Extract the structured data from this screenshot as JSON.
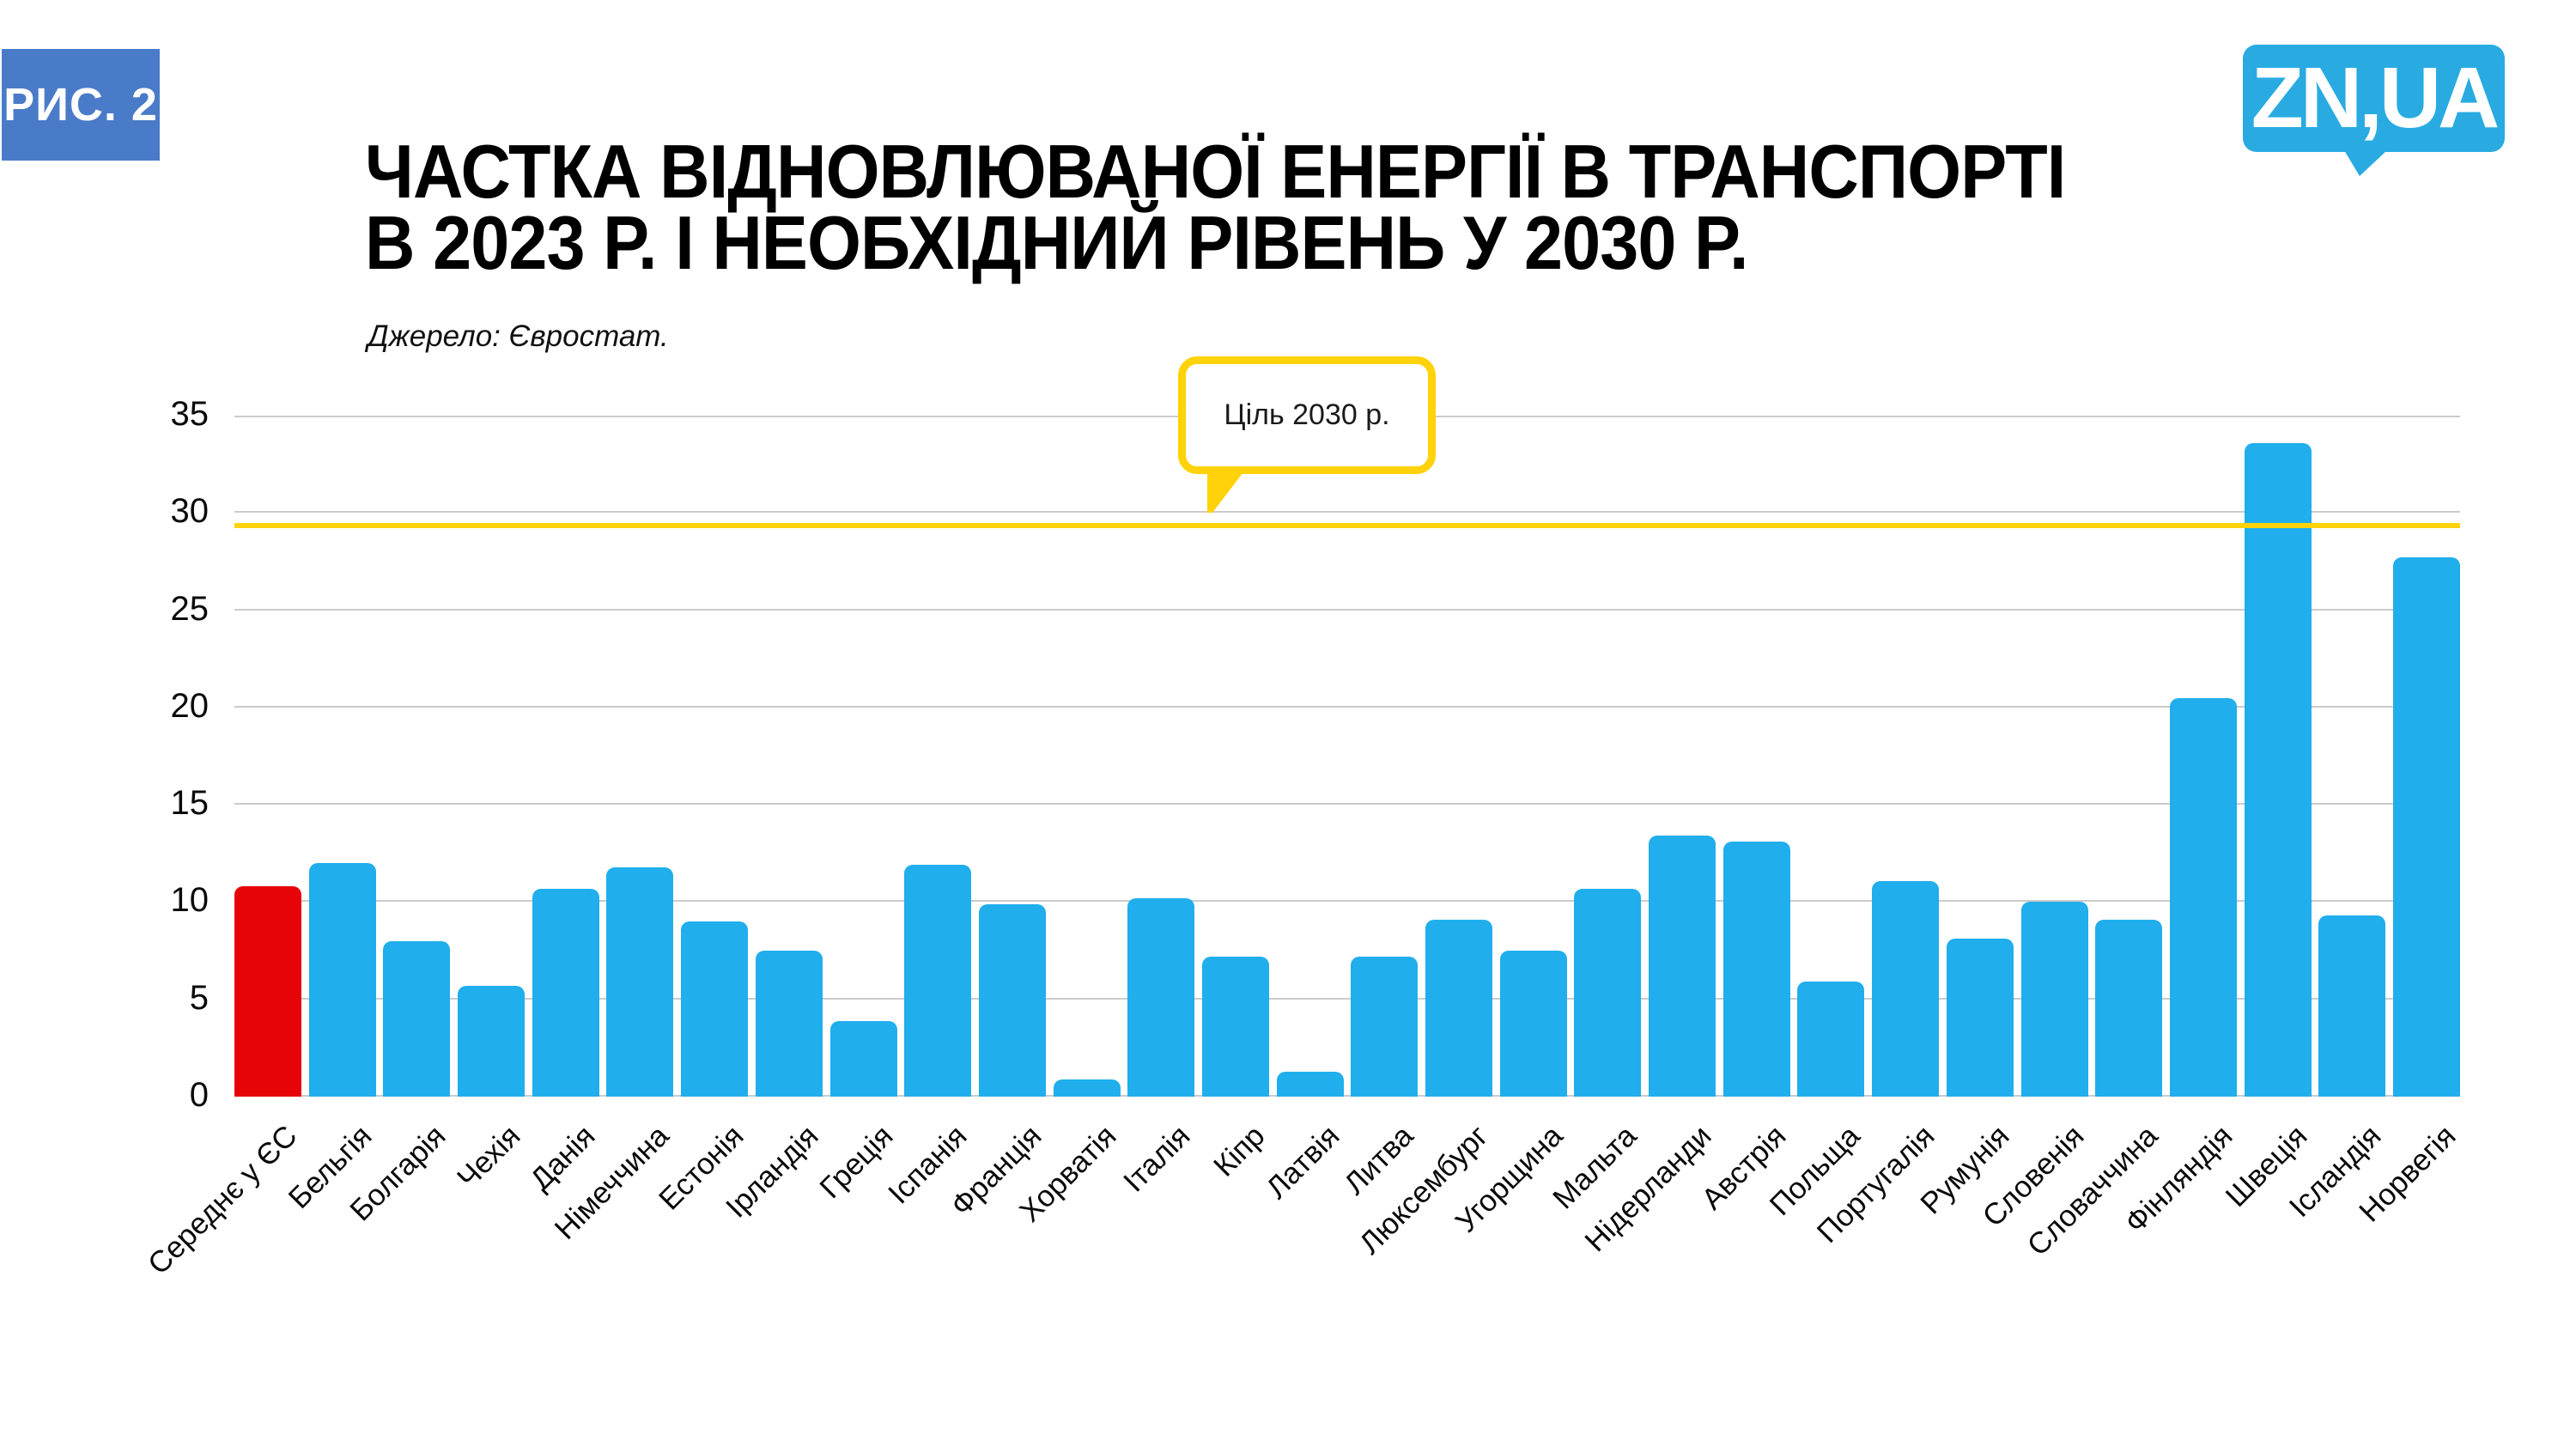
{
  "figure_label": "РИС. 2",
  "logo_text": "ZN,UA",
  "title_line1": "ЧАСТКА ВІДНОВЛЮВАНОЇ ЕНЕРГІЇ В ТРАНСПОРТІ",
  "title_line2": "В 2023 Р. І НЕОБХІДНИЙ РІВЕНЬ У 2030 Р.",
  "source_note": "Джерело: Євростат.",
  "callout_label": "Ціль 2030 р.",
  "colors": {
    "badge_blue": "#4a7bc8",
    "logo_blue": "#29abe2",
    "bar_blue": "#20aeec",
    "highlight_red": "#e60408",
    "target_yellow": "#ffd20a",
    "gridline_gray": "#cbcbcb"
  },
  "chart_data": {
    "type": "bar",
    "title": "ЧАСТКА ВІДНОВЛЮВАНОЇ ЕНЕРГІЇ В ТРАНСПОРТІ В 2023 Р. І НЕОБХІДНИЙ РІВЕНЬ У 2030 Р.",
    "xlabel": "",
    "ylabel": "",
    "ylim": [
      0,
      35
    ],
    "yticks": [
      0,
      5,
      10,
      15,
      20,
      25,
      30,
      35
    ],
    "grid": true,
    "legend_position": "none",
    "categories": [
      "Середнє у ЄС",
      "Бельгія",
      "Болгарія",
      "Чехія",
      "Данія",
      "Німеччина",
      "Естонія",
      "Ірландія",
      "Греція",
      "Іспанія",
      "Франція",
      "Хорватія",
      "Італія",
      "Кіпр",
      "Латвія",
      "Литва",
      "Люксембург",
      "Угорщина",
      "Мальта",
      "Нідерланди",
      "Австрія",
      "Польща",
      "Португалія",
      "Румунія",
      "Словенія",
      "Словаччина",
      "Фінляндія",
      "Швеція",
      "Ісландія",
      "Норвегія"
    ],
    "values": [
      10.8,
      12.0,
      8.0,
      5.7,
      10.7,
      11.8,
      9.0,
      7.5,
      3.9,
      11.9,
      9.9,
      0.9,
      10.2,
      7.2,
      1.3,
      7.2,
      9.1,
      7.5,
      10.7,
      13.4,
      13.1,
      5.9,
      11.1,
      8.1,
      10.0,
      9.1,
      20.5,
      33.6,
      9.3,
      27.7
    ],
    "highlight_index": 0,
    "target_line": {
      "label": "Ціль 2030 р.",
      "value": 29.5
    }
  }
}
